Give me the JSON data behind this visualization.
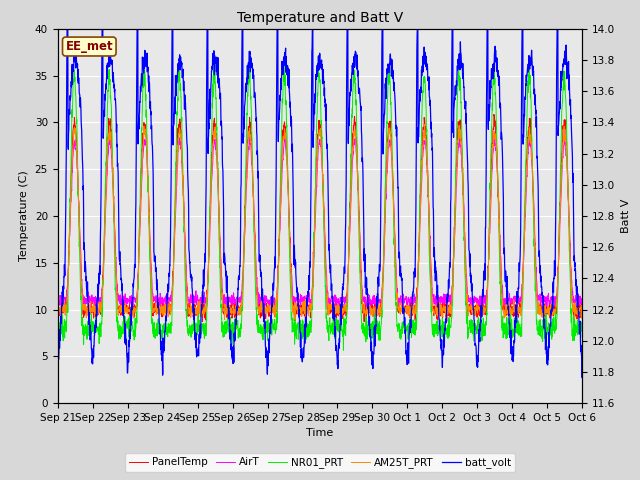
{
  "title": "Temperature and Batt V",
  "xlabel": "Time",
  "ylabel_left": "Temperature (C)",
  "ylabel_right": "Batt V",
  "ylim_left": [
    0,
    40
  ],
  "ylim_right": [
    11.6,
    14.0
  ],
  "watermark": "EE_met",
  "bg_color": "#e8e8e8",
  "fig_bg_color": "#d8d8d8",
  "legend": [
    {
      "label": "PanelTemp",
      "color": "#ff0000"
    },
    {
      "label": "AirT",
      "color": "#ff00ff"
    },
    {
      "label": "NR01_PRT",
      "color": "#00ee00"
    },
    {
      "label": "AM25T_PRT",
      "color": "#ff8800"
    },
    {
      "label": "batt_volt",
      "color": "#0000ff"
    }
  ],
  "xtick_labels": [
    "Sep 21",
    "Sep 22",
    "Sep 23",
    "Sep 24",
    "Sep 25",
    "Sep 26",
    "Sep 27",
    "Sep 28",
    "Sep 29",
    "Sep 30",
    "Oct 1",
    "Oct 2",
    "Oct 3",
    "Oct 4",
    "Oct 5",
    "Oct 6"
  ],
  "num_days": 15,
  "pts_per_day": 144,
  "seed": 12345
}
